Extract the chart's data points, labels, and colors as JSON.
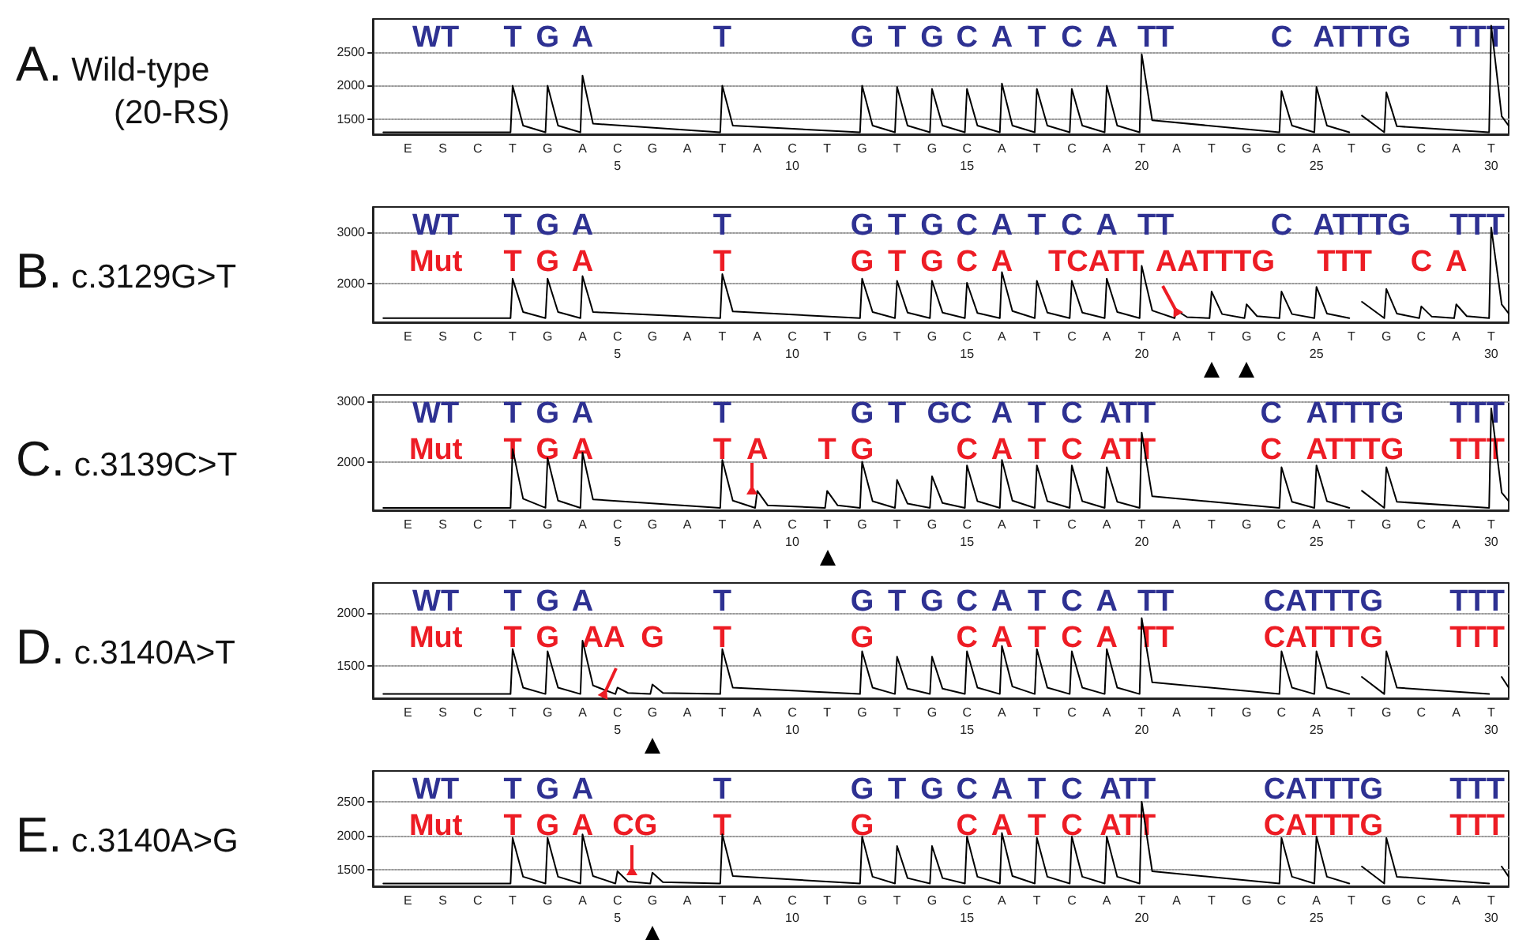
{
  "chart_data": [
    {
      "type": "line",
      "title": "A. Wild-type",
      "subtitle": "(20-RS)",
      "marker": "none",
      "grid": "y",
      "xlim": [
        -2,
        30.5
      ],
      "xticks": [
        5,
        10,
        15,
        20,
        25,
        30
      ],
      "ylim": [
        1270,
        3000
      ],
      "yticks": [
        1500,
        2000,
        2500
      ],
      "series": [
        {
          "color": "#000000",
          "x": [
            -1.7,
            1.94,
            2,
            2.3,
            2.94,
            3,
            3.3,
            3.94,
            4,
            4.3,
            7.94,
            8,
            8.3,
            11.94,
            12,
            12.3,
            12.94,
            13,
            13.3,
            13.94,
            14,
            14.3,
            14.94,
            15,
            15.3,
            15.94,
            16,
            16.3,
            16.94,
            17,
            17.3,
            17.94,
            18,
            18.3,
            18.94,
            19,
            19.3,
            19.94,
            20,
            20.3,
            23.94,
            24,
            24.3,
            24.94,
            25,
            25.3,
            25.94,
            26,
            26.3,
            26.94,
            27,
            27.3,
            29.94,
            30,
            30.3,
            30.5
          ],
          "values": [
            1300,
            1300,
            2000,
            1400,
            1300,
            2000,
            1400,
            1300,
            2150,
            1430,
            1300,
            2000,
            1400,
            1300,
            2000,
            1400,
            1300,
            1980,
            1400,
            1300,
            1950,
            1400,
            1300,
            1950,
            1400,
            1300,
            2030,
            1400,
            1300,
            1950,
            1400,
            1300,
            1950,
            1400,
            1300,
            2000,
            1400,
            1300,
            2470,
            1480,
            1300,
            1920,
            1400,
            1300,
            1980,
            1400,
            1300,
            null,
            1550,
            1300,
            1900,
            1390,
            1300,
            2900,
            1540,
            1400
          ]
        }
      ],
      "annotations": [
        "WT",
        "T",
        "G",
        "A",
        "T",
        "G",
        "T",
        "G",
        "C",
        "A",
        "T",
        "C",
        "A",
        "TT",
        "C",
        "ATTTG",
        "TTT",
        "E",
        "S",
        "C",
        "T",
        "G",
        "A",
        "C",
        "G",
        "A",
        "T",
        "A",
        "C",
        "T",
        "G",
        "T",
        "G",
        "C",
        "A",
        "T",
        "C",
        "A",
        "T",
        "A",
        "T",
        "G",
        "C",
        "A",
        "T",
        "G",
        "C",
        "A",
        "T"
      ]
    },
    {
      "type": "line",
      "title": "B. c.3129G>T",
      "marker": "none",
      "grid": "y",
      "xlim": [
        -2,
        30.5
      ],
      "xticks": [
        5,
        10,
        15,
        20,
        25,
        30
      ],
      "ylim": [
        1250,
        3500
      ],
      "yticks": [
        2000,
        3000
      ],
      "series": [
        {
          "color": "#000000",
          "x": [
            -1.7,
            1.94,
            2,
            2.3,
            2.94,
            3,
            3.3,
            3.94,
            4,
            4.3,
            7.94,
            8,
            8.3,
            11.94,
            12,
            12.3,
            12.94,
            13,
            13.3,
            13.94,
            14,
            14.3,
            14.94,
            15,
            15.3,
            15.94,
            16,
            16.3,
            16.94,
            17,
            17.3,
            17.94,
            18,
            18.3,
            18.94,
            19,
            19.3,
            19.94,
            20,
            20.3,
            20.94,
            21,
            21.3,
            21.94,
            22,
            22.3,
            22.94,
            23,
            23.3,
            23.94,
            24,
            24.3,
            24.94,
            25,
            25.3,
            25.94,
            26,
            26.3,
            26.94,
            27,
            27.3,
            27.94,
            28,
            28.3,
            28.94,
            29,
            29.3,
            29.94,
            30,
            30.3,
            30.5
          ],
          "values": [
            1330,
            1330,
            2100,
            1450,
            1330,
            2100,
            1450,
            1330,
            2150,
            1450,
            1330,
            2190,
            1460,
            1330,
            2100,
            1450,
            1330,
            2060,
            1440,
            1330,
            2060,
            1440,
            1330,
            2020,
            1430,
            1330,
            2230,
            1470,
            1330,
            2060,
            1440,
            1330,
            2060,
            1440,
            1330,
            2100,
            1450,
            1330,
            2350,
            1480,
            1330,
            1480,
            1350,
            1330,
            1850,
            1410,
            1330,
            1600,
            1370,
            1330,
            1850,
            1410,
            1330,
            1940,
            1420,
            1330,
            null,
            1650,
            1330,
            1900,
            1420,
            1330,
            1560,
            1360,
            1330,
            1600,
            1370,
            1330,
            3100,
            1600,
            1420
          ]
        }
      ],
      "annotations": [
        "WT",
        "T",
        "G",
        "A",
        "T",
        "G",
        "T",
        "G",
        "C",
        "A",
        "T",
        "C",
        "A",
        "TT",
        "C",
        "ATTTG",
        "TTT",
        "Mut",
        "T",
        "G",
        "A",
        "T",
        "G",
        "T",
        "G",
        "C",
        "A",
        "TCATT",
        "AATTTG",
        "TTT",
        "C",
        "A",
        "E",
        "S",
        "C",
        "T",
        "G",
        "A",
        "C",
        "G",
        "A",
        "T",
        "A",
        "C",
        "T",
        "G",
        "T",
        "G",
        "C",
        "A",
        "T",
        "C",
        "A",
        "T",
        "A",
        "T",
        "G",
        "C",
        "A",
        "T",
        "G",
        "C",
        "A",
        "T"
      ]
    },
    {
      "type": "line",
      "title": "C. c.3139C>T",
      "marker": "none",
      "grid": "y",
      "xlim": [
        -2,
        30.5
      ],
      "xticks": [
        5,
        10,
        15,
        20,
        25,
        30
      ],
      "ylim": [
        1200,
        3100
      ],
      "yticks": [
        2000,
        3000
      ],
      "series": [
        {
          "color": "#000000",
          "x": [
            -1.7,
            1.94,
            2,
            2.3,
            2.94,
            3,
            3.3,
            3.94,
            4,
            4.3,
            7.94,
            8,
            8.3,
            8.94,
            9,
            9.3,
            10.94,
            11,
            11.3,
            11.94,
            12,
            12.3,
            12.94,
            13,
            13.3,
            13.94,
            14,
            14.3,
            14.94,
            15,
            15.3,
            15.94,
            16,
            16.3,
            16.94,
            17,
            17.3,
            17.94,
            18,
            18.3,
            18.94,
            19,
            19.3,
            19.94,
            20,
            20.3,
            23.94,
            24,
            24.3,
            24.94,
            25,
            25.3,
            25.94,
            26,
            26.3,
            26.94,
            27,
            27.3,
            29.94,
            30,
            30.3,
            30.5
          ],
          "values": [
            1240,
            1240,
            2210,
            1390,
            1240,
            2060,
            1360,
            1240,
            2150,
            1380,
            1240,
            2030,
            1360,
            1240,
            1520,
            1280,
            1240,
            1520,
            1280,
            1240,
            2000,
            1350,
            1240,
            1700,
            1310,
            1240,
            1760,
            1320,
            1240,
            1940,
            1350,
            1240,
            2030,
            1360,
            1240,
            1940,
            1350,
            1240,
            1940,
            1350,
            1240,
            1910,
            1340,
            1240,
            2480,
            1430,
            1240,
            1910,
            1340,
            1240,
            1940,
            1350,
            1240,
            null,
            1520,
            1240,
            1910,
            1340,
            1240,
            2880,
            1490,
            1350
          ]
        }
      ],
      "annotations": [
        "WT",
        "T",
        "G",
        "A",
        "T",
        "G",
        "T",
        "GC",
        "A",
        "T",
        "C",
        "ATT",
        "C",
        "ATTTG",
        "TTT",
        "Mut",
        "T",
        "G",
        "A",
        "T",
        "A",
        "T",
        "G",
        "C",
        "A",
        "T",
        "C",
        "ATT",
        "C",
        "ATTTG",
        "TTT",
        "E",
        "S",
        "C",
        "T",
        "G",
        "A",
        "C",
        "G",
        "A",
        "T",
        "A",
        "C",
        "T",
        "G",
        "T",
        "G",
        "C",
        "A",
        "T",
        "C",
        "A",
        "T",
        "A",
        "T",
        "G",
        "C",
        "A",
        "T",
        "G",
        "C",
        "A",
        "T"
      ]
    },
    {
      "type": "line",
      "title": "D. c.3140A>T",
      "marker": "none",
      "grid": "y",
      "xlim": [
        -2,
        30.5
      ],
      "xticks": [
        5,
        10,
        15,
        20,
        25,
        30
      ],
      "ylim": [
        1200,
        2280
      ],
      "yticks": [
        1500,
        2000
      ],
      "series": [
        {
          "color": "#000000",
          "x": [
            -1.7,
            1.94,
            2,
            2.3,
            2.94,
            3,
            3.3,
            3.94,
            4,
            4.3,
            4.94,
            5,
            5.3,
            5.94,
            6,
            6.3,
            7.94,
            8,
            8.3,
            11.94,
            12,
            12.3,
            12.94,
            13,
            13.3,
            13.94,
            14,
            14.3,
            14.94,
            15,
            15.3,
            15.94,
            16,
            16.3,
            16.94,
            17,
            17.3,
            17.94,
            18,
            18.3,
            18.94,
            19,
            19.3,
            19.94,
            20,
            20.3,
            23.94,
            24,
            24.3,
            24.94,
            25,
            25.3,
            25.94,
            26,
            26.3,
            26.94,
            27,
            27.3,
            29.94,
            30,
            30.3,
            30.5
          ],
          "values": [
            1240,
            1240,
            1660,
            1300,
            1240,
            1640,
            1300,
            1240,
            1740,
            1320,
            1240,
            1300,
            1250,
            1240,
            1330,
            1250,
            1240,
            1660,
            1300,
            1240,
            1640,
            1300,
            1240,
            1590,
            1290,
            1240,
            1590,
            1290,
            1240,
            1640,
            1300,
            1240,
            1690,
            1310,
            1240,
            1660,
            1300,
            1240,
            1640,
            1300,
            1240,
            1660,
            1300,
            1240,
            1950,
            1350,
            1240,
            1640,
            1300,
            1240,
            1640,
            1300,
            1240,
            null,
            1400,
            1240,
            1640,
            1300,
            1240,
            null,
            1400,
            1300
          ]
        }
      ],
      "annotations": [
        "WT",
        "T",
        "G",
        "A",
        "T",
        "G",
        "T",
        "G",
        "C",
        "A",
        "T",
        "C",
        "A",
        "TT",
        "CATTTG",
        "TTT",
        "Mut",
        "T",
        "G",
        "AA",
        "G",
        "T",
        "G",
        "C",
        "A",
        "T",
        "C",
        "A",
        "TT",
        "CATTTG",
        "TTT",
        "E",
        "S",
        "C",
        "T",
        "G",
        "A",
        "C",
        "G",
        "A",
        "T",
        "A",
        "C",
        "T",
        "G",
        "T",
        "G",
        "C",
        "A",
        "T",
        "C",
        "A",
        "T",
        "A",
        "T",
        "G",
        "C",
        "A",
        "T",
        "G",
        "C",
        "A",
        "T"
      ]
    },
    {
      "type": "line",
      "title": "E. c.3140A>G",
      "marker": "none",
      "grid": "y",
      "xlim": [
        -2,
        30.5
      ],
      "xticks": [
        5,
        10,
        15,
        20,
        25,
        30
      ],
      "ylim": [
        1260,
        2950
      ],
      "yticks": [
        1500,
        2000,
        2500
      ],
      "series": [
        {
          "color": "#000000",
          "x": [
            -1.7,
            1.94,
            2,
            2.3,
            2.94,
            3,
            3.3,
            3.94,
            4,
            4.3,
            4.94,
            5,
            5.3,
            5.94,
            6,
            6.3,
            7.94,
            8,
            8.3,
            11.94,
            12,
            12.3,
            12.94,
            13,
            13.3,
            13.94,
            14,
            14.3,
            14.94,
            15,
            15.3,
            15.94,
            16,
            16.3,
            16.94,
            17,
            17.3,
            17.94,
            18,
            18.3,
            18.94,
            19,
            19.3,
            19.94,
            20,
            20.3,
            23.94,
            24,
            24.3,
            24.94,
            25,
            25.3,
            25.94,
            26,
            26.3,
            26.94,
            27,
            27.3,
            29.94,
            30,
            30.3,
            30.5
          ],
          "values": [
            1300,
            1300,
            1970,
            1400,
            1300,
            1970,
            1400,
            1300,
            2020,
            1410,
            1300,
            1480,
            1330,
            1300,
            1460,
            1320,
            1300,
            2020,
            1410,
            1300,
            1990,
            1400,
            1300,
            1850,
            1380,
            1300,
            1850,
            1380,
            1300,
            1990,
            1400,
            1300,
            2040,
            1410,
            1300,
            1970,
            1400,
            1300,
            1990,
            1400,
            1300,
            1990,
            1400,
            1300,
            2500,
            1480,
            1300,
            1970,
            1400,
            1300,
            1990,
            1400,
            1300,
            null,
            1550,
            1300,
            1970,
            1400,
            1300,
            null,
            1550,
            1400
          ]
        }
      ],
      "annotations": [
        "WT",
        "T",
        "G",
        "A",
        "T",
        "G",
        "T",
        "G",
        "C",
        "A",
        "T",
        "C",
        "ATT",
        "CATTTG",
        "TTT",
        "Mut",
        "T",
        "G",
        "A",
        "CG",
        "T",
        "G",
        "C",
        "A",
        "T",
        "C",
        "ATT",
        "CATTTG",
        "TTT",
        "E",
        "S",
        "C",
        "T",
        "G",
        "A",
        "C",
        "G",
        "A",
        "T",
        "A",
        "C",
        "T",
        "G",
        "T",
        "G",
        "C",
        "A",
        "T",
        "C",
        "A",
        "T",
        "A",
        "T",
        "G",
        "C",
        "A",
        "T",
        "G",
        "C",
        "A",
        "T"
      ]
    }
  ]
}
